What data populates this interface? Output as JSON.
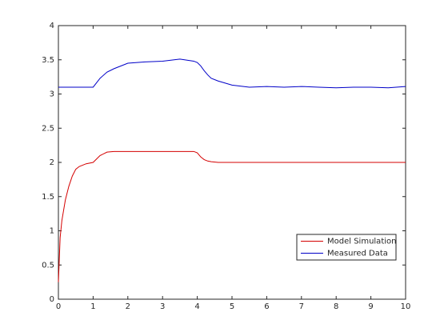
{
  "chart_data": {
    "type": "line",
    "x": [
      0,
      0.05,
      0.1,
      0.2,
      0.3,
      0.4,
      0.5,
      0.6,
      0.8,
      1,
      1.2,
      1.4,
      1.6,
      2,
      2.5,
      3,
      3.5,
      3.9,
      4,
      4.1,
      4.2,
      4.3,
      4.4,
      4.6,
      5,
      5.5,
      6,
      6.5,
      7,
      7.5,
      8,
      8.5,
      9,
      9.5,
      10
    ],
    "series": [
      {
        "name": "Model Simulation",
        "color": "#d40000",
        "values": [
          0.25,
          0.9,
          1.15,
          1.45,
          1.65,
          1.8,
          1.9,
          1.94,
          1.98,
          2.0,
          2.1,
          2.15,
          2.16,
          2.16,
          2.16,
          2.16,
          2.16,
          2.16,
          2.14,
          2.08,
          2.04,
          2.02,
          2.01,
          2.0,
          2.0,
          2.0,
          2.0,
          2.0,
          2.0,
          2.0,
          2.0,
          2.0,
          2.0,
          2.0,
          2.0
        ]
      },
      {
        "name": "Measured Data",
        "color": "#0000c8",
        "values": [
          3.1,
          3.1,
          3.1,
          3.1,
          3.1,
          3.1,
          3.1,
          3.1,
          3.1,
          3.1,
          3.23,
          3.32,
          3.37,
          3.45,
          3.47,
          3.48,
          3.51,
          3.48,
          3.46,
          3.41,
          3.34,
          3.28,
          3.23,
          3.19,
          3.13,
          3.1,
          3.11,
          3.1,
          3.11,
          3.1,
          3.09,
          3.1,
          3.1,
          3.09,
          3.11
        ]
      }
    ],
    "xlim": [
      0,
      10
    ],
    "xticks": [
      0,
      1,
      2,
      3,
      4,
      5,
      6,
      7,
      8,
      9,
      10
    ],
    "ylim": [
      0,
      4
    ],
    "yticks": [
      0,
      0.5,
      1,
      1.5,
      2,
      2.5,
      3,
      3.5,
      4
    ],
    "legend": "southeast"
  }
}
